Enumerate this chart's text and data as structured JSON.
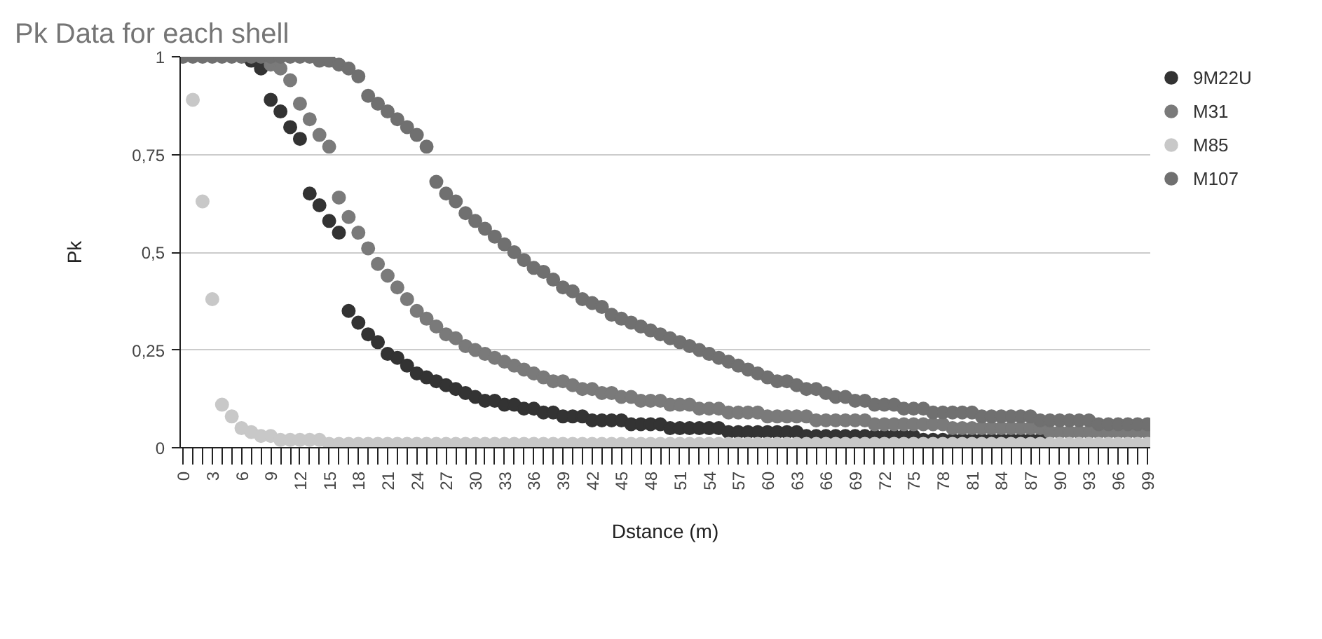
{
  "chart_data": {
    "type": "scatter",
    "title": "Pk Data for each shell",
    "xlabel": "Dstance (m)",
    "ylabel": "Pk",
    "marker": "circle",
    "grid": "y",
    "legend": "right",
    "x": [
      0,
      1,
      2,
      3,
      4,
      5,
      6,
      7,
      8,
      9,
      10,
      11,
      12,
      13,
      14,
      15,
      16,
      17,
      18,
      19,
      20,
      21,
      22,
      23,
      24,
      25,
      26,
      27,
      28,
      29,
      30,
      31,
      32,
      33,
      34,
      35,
      36,
      37,
      38,
      39,
      40,
      41,
      42,
      43,
      44,
      45,
      46,
      47,
      48,
      49,
      50,
      51,
      52,
      53,
      54,
      55,
      56,
      57,
      58,
      59,
      60,
      61,
      62,
      63,
      64,
      65,
      66,
      67,
      68,
      69,
      70,
      71,
      72,
      73,
      74,
      75,
      76,
      77,
      78,
      79,
      80,
      81,
      82,
      83,
      84,
      85,
      86,
      87,
      88,
      89,
      90,
      91,
      92,
      93,
      94,
      95,
      96,
      97,
      98,
      99
    ],
    "xlim": [
      -0.3,
      99.3
    ],
    "xticks": [
      0,
      {
        "value": 1,
        "label": null
      },
      {
        "value": 2,
        "label": null
      },
      3,
      {
        "value": 4,
        "label": null
      },
      {
        "value": 5,
        "label": null
      },
      6,
      {
        "value": 7,
        "label": null
      },
      {
        "value": 8,
        "label": null
      },
      9,
      {
        "value": 10,
        "label": null
      },
      {
        "value": 11,
        "label": null
      },
      12,
      {
        "value": 13,
        "label": null
      },
      {
        "value": 14,
        "label": null
      },
      15,
      {
        "value": 16,
        "label": null
      },
      {
        "value": 17,
        "label": null
      },
      18,
      {
        "value": 19,
        "label": null
      },
      {
        "value": 20,
        "label": null
      },
      21,
      {
        "value": 22,
        "label": null
      },
      {
        "value": 23,
        "label": null
      },
      24,
      {
        "value": 25,
        "label": null
      },
      {
        "value": 26,
        "label": null
      },
      27,
      {
        "value": 28,
        "label": null
      },
      {
        "value": 29,
        "label": null
      },
      30,
      {
        "value": 31,
        "label": null
      },
      {
        "value": 32,
        "label": null
      },
      33,
      {
        "value": 34,
        "label": null
      },
      {
        "value": 35,
        "label": null
      },
      36,
      {
        "value": 37,
        "label": null
      },
      {
        "value": 38,
        "label": null
      },
      39,
      {
        "value": 40,
        "label": null
      },
      {
        "value": 41,
        "label": null
      },
      42,
      {
        "value": 43,
        "label": null
      },
      {
        "value": 44,
        "label": null
      },
      45,
      {
        "value": 46,
        "label": null
      },
      {
        "value": 47,
        "label": null
      },
      48,
      {
        "value": 49,
        "label": null
      },
      {
        "value": 50,
        "label": null
      },
      51,
      {
        "value": 52,
        "label": null
      },
      {
        "value": 53,
        "label": null
      },
      54,
      {
        "value": 55,
        "label": null
      },
      {
        "value": 56,
        "label": null
      },
      57,
      {
        "value": 58,
        "label": null
      },
      {
        "value": 59,
        "label": null
      },
      60,
      {
        "value": 61,
        "label": null
      },
      {
        "value": 62,
        "label": null
      },
      63,
      {
        "value": 64,
        "label": null
      },
      {
        "value": 65,
        "label": null
      },
      66,
      {
        "value": 67,
        "label": null
      },
      {
        "value": 68,
        "label": null
      },
      69,
      {
        "value": 70,
        "label": null
      },
      {
        "value": 71,
        "label": null
      },
      72,
      {
        "value": 73,
        "label": null
      },
      {
        "value": 74,
        "label": null
      },
      75,
      {
        "value": 76,
        "label": null
      },
      {
        "value": 77,
        "label": null
      },
      78,
      {
        "value": 79,
        "label": null
      },
      {
        "value": 80,
        "label": null
      },
      81,
      {
        "value": 82,
        "label": null
      },
      {
        "value": 83,
        "label": null
      },
      84,
      {
        "value": 85,
        "label": null
      },
      {
        "value": 86,
        "label": null
      },
      87,
      {
        "value": 88,
        "label": null
      },
      {
        "value": 89,
        "label": null
      },
      90,
      {
        "value": 91,
        "label": null
      },
      {
        "value": 92,
        "label": null
      },
      93,
      {
        "value": 94,
        "label": null
      },
      {
        "value": 95,
        "label": null
      },
      96,
      {
        "value": 97,
        "label": null
      },
      {
        "value": 98,
        "label": null
      },
      99
    ],
    "ylim": [
      0,
      1
    ],
    "yticks": [
      0,
      {
        "value": 0.25,
        "label": "0,25"
      },
      {
        "value": 0.5,
        "label": "0,5"
      },
      {
        "value": 0.75,
        "label": "0,75"
      },
      1
    ],
    "series": [
      {
        "name": "9M22U",
        "color": "#333333",
        "values": [
          null,
          null,
          null,
          null,
          null,
          null,
          null,
          0.99,
          0.97,
          0.89,
          0.86,
          0.82,
          0.79,
          0.65,
          0.62,
          0.58,
          0.55,
          0.35,
          0.32,
          0.29,
          0.27,
          0.24,
          0.23,
          0.21,
          0.19,
          0.18,
          0.17,
          0.16,
          0.15,
          0.14,
          0.13,
          0.12,
          0.12,
          0.11,
          0.11,
          0.1,
          0.1,
          0.09,
          0.09,
          0.08,
          0.08,
          0.08,
          0.07,
          0.07,
          0.07,
          0.07,
          0.06,
          0.06,
          0.06,
          0.06,
          0.05,
          0.05,
          0.05,
          0.05,
          0.05,
          0.05,
          0.04,
          0.04,
          0.04,
          0.04,
          0.04,
          0.04,
          0.04,
          0.04,
          0.03,
          0.03,
          0.03,
          0.03,
          0.03,
          0.03,
          0.03,
          0.03,
          0.03,
          0.03,
          0.03,
          0.03,
          0.02,
          0.02,
          0.02,
          0.02,
          0.02,
          0.02,
          0.02,
          0.02,
          0.02,
          0.02,
          0.02,
          0.02,
          0.02,
          null,
          null,
          null,
          null,
          null,
          null,
          null,
          null,
          null,
          null,
          null
        ]
      },
      {
        "name": "M31",
        "color": "#7a7a7a",
        "values": [
          null,
          null,
          null,
          null,
          null,
          null,
          null,
          null,
          null,
          0.98,
          0.97,
          0.94,
          0.88,
          0.84,
          0.8,
          0.77,
          0.64,
          0.59,
          0.55,
          0.51,
          0.47,
          0.44,
          0.41,
          0.38,
          0.35,
          0.33,
          0.31,
          0.29,
          0.28,
          0.26,
          0.25,
          0.24,
          0.23,
          0.22,
          0.21,
          0.2,
          0.19,
          0.18,
          0.17,
          0.17,
          0.16,
          0.15,
          0.15,
          0.14,
          0.14,
          0.13,
          0.13,
          0.12,
          0.12,
          0.12,
          0.11,
          0.11,
          0.11,
          0.1,
          0.1,
          0.1,
          0.09,
          0.09,
          0.09,
          0.09,
          0.08,
          0.08,
          0.08,
          0.08,
          0.08,
          0.07,
          0.07,
          0.07,
          0.07,
          0.07,
          0.07,
          0.06,
          0.06,
          0.06,
          0.06,
          0.06,
          0.06,
          0.06,
          0.06,
          0.05,
          0.05,
          0.05,
          0.05,
          0.05,
          0.05,
          0.05,
          0.05,
          0.05,
          0.05,
          0.04,
          0.04,
          0.04,
          0.04,
          0.04,
          0.04,
          0.04,
          0.04,
          0.04,
          0.04,
          0.04
        ]
      },
      {
        "name": "M85",
        "color": "#c8c8c8",
        "values": [
          null,
          0.89,
          0.63,
          0.38,
          0.11,
          0.08,
          0.05,
          0.04,
          0.03,
          0.03,
          0.02,
          0.02,
          0.02,
          0.02,
          0.02,
          0.01,
          0.01,
          0.01,
          0.01,
          0.01,
          0.01,
          0.01,
          0.01,
          0.01,
          0.01,
          0.01,
          0.01,
          0.01,
          0.01,
          0.01,
          0.01,
          0.01,
          0.01,
          0.01,
          0.01,
          0.01,
          0.01,
          0.01,
          0.01,
          0.01,
          0.01,
          0.01,
          0.01,
          0.01,
          0.01,
          0.01,
          0.01,
          0.01,
          0.01,
          0.01,
          0.01,
          0.01,
          0.01,
          0.01,
          0.01,
          0.01,
          0.01,
          0.01,
          0.01,
          0.01,
          0.01,
          0.01,
          0.01,
          0.01,
          0.01,
          0.01,
          0.01,
          0.01,
          0.01,
          0.01,
          0.01,
          0.01,
          0.01,
          0.01,
          0.01,
          0.01,
          0.01,
          0.01,
          0.01,
          0.01,
          0.01,
          0.01,
          0.01,
          0.01,
          0.01,
          0.01,
          0.01,
          0.01,
          0.01,
          0.01,
          0.01,
          0.01,
          0.01,
          0.01,
          0.01,
          0.01,
          0.01,
          0.01,
          0.01,
          0.01
        ]
      },
      {
        "name": "M107",
        "color": "#707070",
        "values": [
          1,
          1,
          1,
          1,
          1,
          1,
          1,
          1,
          1,
          1,
          1,
          1,
          1,
          1,
          0.99,
          0.99,
          0.98,
          0.97,
          0.95,
          0.9,
          0.88,
          0.86,
          0.84,
          0.82,
          0.8,
          0.77,
          0.68,
          0.65,
          0.63,
          0.6,
          0.58,
          0.56,
          0.54,
          0.52,
          0.5,
          0.48,
          0.46,
          0.45,
          0.43,
          0.41,
          0.4,
          0.38,
          0.37,
          0.36,
          0.34,
          0.33,
          0.32,
          0.31,
          0.3,
          0.29,
          0.28,
          0.27,
          0.26,
          0.25,
          0.24,
          0.23,
          0.22,
          0.21,
          0.2,
          0.19,
          0.18,
          0.17,
          0.17,
          0.16,
          0.15,
          0.15,
          0.14,
          0.13,
          0.13,
          0.12,
          0.12,
          0.11,
          0.11,
          0.11,
          0.1,
          0.1,
          0.1,
          0.09,
          0.09,
          0.09,
          0.09,
          0.09,
          0.08,
          0.08,
          0.08,
          0.08,
          0.08,
          0.08,
          0.07,
          0.07,
          0.07,
          0.07,
          0.07,
          0.07,
          0.06,
          0.06,
          0.06,
          0.06,
          0.06,
          0.06
        ]
      }
    ]
  }
}
